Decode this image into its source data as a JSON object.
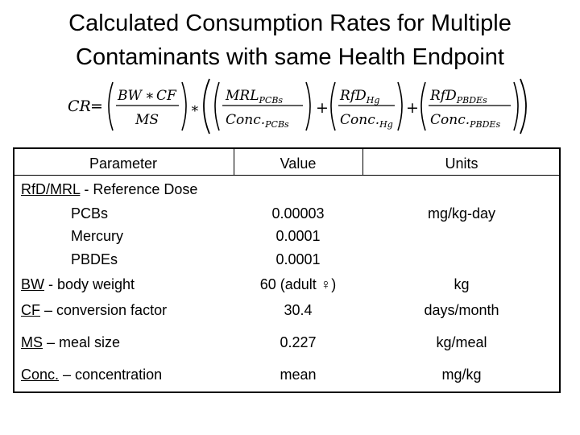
{
  "title_line1": "Calculated Consumption Rates for Multiple",
  "title_line2": "Contaminants with same Health Endpoint",
  "formula": {
    "lhs": "CR",
    "bw": "BW",
    "cf": "CF",
    "ms": "MS",
    "mrl": "MRL",
    "mrl_sub": "PCBs",
    "conc": "Conc.",
    "conc_sub_pcbs": "PCBs",
    "rfd": "RfD",
    "rfd_sub_hg": "Hg",
    "conc_sub_hg": "Hg",
    "rfd_sub_pbdes": "PBDEs",
    "conc_sub_pbdes": "PBDEs"
  },
  "table": {
    "headers": {
      "parameter": "Parameter",
      "value": "Value",
      "units": "Units"
    },
    "rfd_group": {
      "label_abbr": "RfD/MRL",
      "label_rest": " - Reference Dose",
      "items": [
        {
          "name": "PCBs",
          "value": "0.00003"
        },
        {
          "name": "Mercury",
          "value": "0.0001"
        },
        {
          "name": "PBDEs",
          "value": "0.0001"
        }
      ],
      "units": "mg/kg-day"
    },
    "rows": [
      {
        "abbr": "BW",
        "rest": " - body weight",
        "value": "60 (adult ♀)",
        "units": "kg"
      },
      {
        "abbr": "CF",
        "rest": " – conversion factor",
        "value": "30.4",
        "units": "days/month"
      },
      {
        "abbr": "MS",
        "rest": " – meal size",
        "value": "0.227",
        "units": "kg/meal"
      },
      {
        "abbr": "Conc.",
        "rest": " – concentration",
        "value": "mean",
        "units": "mg/kg"
      }
    ]
  }
}
